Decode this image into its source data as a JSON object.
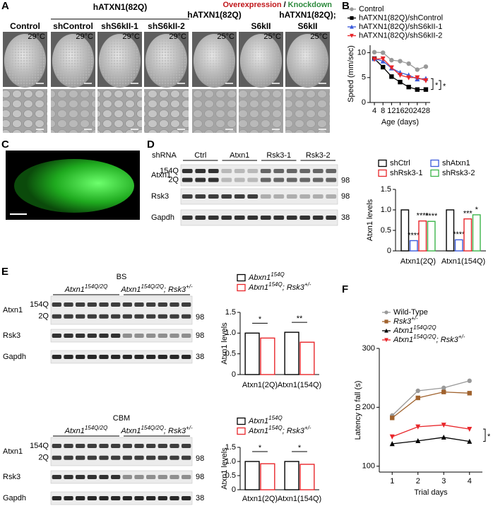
{
  "panel_letters": [
    "A",
    "B",
    "C",
    "D",
    "E",
    "F"
  ],
  "panel_a": {
    "group_label": "hATXN1(82Q)",
    "header": [
      {
        "text": "Overexpression",
        "color": "#c0161a"
      },
      {
        "text": "/",
        "color": "#000000"
      },
      {
        "text": "Knockdown",
        "color": "#2e8b3e"
      }
    ],
    "columns": [
      {
        "label": [
          "Control"
        ],
        "color": "#000000",
        "temp": "29°C"
      },
      {
        "label": [
          "shControl"
        ],
        "color": "#2e8b3e",
        "temp": "29°C"
      },
      {
        "label": [
          "shS6kII-1"
        ],
        "color": "#2e8b3e",
        "temp": "29°C"
      },
      {
        "label": [
          "shS6kII-2"
        ],
        "color": "#2e8b3e",
        "temp": "29°C"
      },
      {
        "label": [
          "hATXN1(82Q)"
        ],
        "color": "#c0161a",
        "temp": "25°C"
      },
      {
        "label": [
          "S6kII"
        ],
        "color": "#c0161a",
        "temp": "25°C"
      },
      {
        "label": [
          "hATXN1(82Q);",
          "S6kII"
        ],
        "color": "#c0161a",
        "temp": "25°C"
      }
    ]
  },
  "blot_d": {
    "title": "shRNA",
    "lane_groups": [
      "Ctrl",
      "Atxn1",
      "Rsk3-1",
      "Rsk3-2"
    ],
    "rows": [
      {
        "label": "Atxn1",
        "bands": [
          "154Q",
          "2Q"
        ],
        "mw": "98"
      },
      {
        "label": "Rsk3",
        "mw": "98"
      },
      {
        "label": "Gapdh",
        "mw": "38"
      }
    ]
  },
  "blot_e_bs": {
    "title": "BS",
    "lane_groups": [
      [
        {
          "text": "Atxn1"
        },
        {
          "text": "154Q/2Q",
          "sup": true
        }
      ],
      [
        {
          "text": "Atxn1"
        },
        {
          "text": "154Q/2Q",
          "sup": true
        },
        {
          "text": "; Rsk3"
        },
        {
          "text": "+/-",
          "sup": true
        }
      ]
    ],
    "rows": [
      {
        "label": "Atxn1",
        "bands": [
          "154Q",
          "2Q"
        ],
        "mw": "98"
      },
      {
        "label": "Rsk3",
        "mw": "98"
      },
      {
        "label": "Gapdh",
        "mw": "38"
      }
    ]
  },
  "blot_e_cbm": {
    "title": "CBM",
    "lane_groups": [
      [
        {
          "text": "Atxn1"
        },
        {
          "text": "154Q/2Q",
          "sup": true
        }
      ],
      [
        {
          "text": "Atxn1"
        },
        {
          "text": "154Q/2Q",
          "sup": true
        },
        {
          "text": "; Rsk3"
        },
        {
          "text": "+/-",
          "sup": true
        }
      ]
    ],
    "rows": [
      {
        "label": "Atxn1",
        "bands": [
          "154Q",
          "2Q"
        ],
        "mw": "98"
      },
      {
        "label": "Rsk3",
        "mw": "98"
      },
      {
        "label": "Gapdh",
        "mw": "38"
      }
    ]
  },
  "chart_data": [
    {
      "type": "line",
      "ylabel": "Speed (mm/sec)",
      "xlabel": "Age (days)",
      "x": [
        4,
        8,
        12,
        16,
        20,
        24,
        28
      ],
      "xlim": [
        2,
        30
      ],
      "xticks": [
        4,
        8,
        12,
        16,
        20,
        24,
        28
      ],
      "ylim": [
        0,
        11.5
      ],
      "yticks": [
        0,
        5,
        10
      ],
      "series": [
        {
          "name": "Control",
          "color": "#999999",
          "marker": "circle",
          "values": [
            10.1,
            10.0,
            8.5,
            8.3,
            7.8,
            6.6,
            7.2
          ]
        },
        {
          "name": "hATXN1(82Q)/shControl",
          "color": "#000000",
          "marker": "square",
          "values": [
            8.8,
            7.1,
            5.2,
            4.1,
            3.1,
            2.6,
            2.6
          ]
        },
        {
          "name": "hATXN1(82Q)/shS6kII-1",
          "color": "#3b5bdb",
          "marker": "triangle",
          "values": [
            8.8,
            8.3,
            6.9,
            6.0,
            5.5,
            4.7,
            4.8
          ]
        },
        {
          "name": "hATXN1(82Q)/shS6kII-2",
          "color": "#e8262a",
          "marker": "triangle-down",
          "values": [
            8.7,
            8.8,
            7.0,
            5.5,
            5.0,
            5.0,
            4.4
          ]
        }
      ],
      "annotations": [
        "*",
        "*"
      ]
    },
    {
      "type": "bar",
      "ylabel": "Atxn1 levels",
      "categories": [
        "Atxn1(2Q)",
        "Atxn1(154Q)"
      ],
      "ylim": [
        0,
        1.5
      ],
      "yticks": [
        0,
        0.5,
        {
          "value": 1,
          "label": "1.0"
        },
        1.5
      ],
      "series": [
        {
          "name": "shCtrl",
          "color": "#000000",
          "values": [
            1.0,
            1.0
          ]
        },
        {
          "name": "shAtxn1",
          "color": "#3b5bdb",
          "values": [
            0.25,
            0.27
          ],
          "annotations": [
            "****",
            "****"
          ]
        },
        {
          "name": "shRsk3-1",
          "color": "#e8262a",
          "values": [
            0.73,
            0.78
          ],
          "annotations": [
            "****",
            "***"
          ]
        },
        {
          "name": "shRsk3-2",
          "color": "#3cb54a",
          "values": [
            0.72,
            0.88
          ],
          "annotations": [
            "****",
            "*"
          ]
        }
      ]
    },
    {
      "type": "bar",
      "ylabel": "Atxn1 levels",
      "categories": [
        "Atxn1(2Q)",
        "Atxn1(154Q)"
      ],
      "ylim": [
        0,
        1.5
      ],
      "yticks": [
        0,
        0.5,
        {
          "value": 1,
          "label": "1.0"
        },
        1.5
      ],
      "series": [
        {
          "name": [
            {
              "text": "Abxn1"
            },
            {
              "text": "154Q",
              "sup": true
            }
          ],
          "color": "#000000",
          "values": [
            1.0,
            1.02
          ]
        },
        {
          "name": [
            {
              "text": "Atxn1"
            },
            {
              "text": "154Q",
              "sup": true
            },
            {
              "text": "; Rsk3"
            },
            {
              "text": "+/-",
              "sup": true
            }
          ],
          "color": "#e8262a",
          "values": [
            0.88,
            0.78
          ]
        }
      ],
      "annotations": [
        "*",
        "**"
      ]
    },
    {
      "type": "bar",
      "ylabel": "Atxn1 levels",
      "categories": [
        "Atxn1(2Q)",
        "Atxn1(154Q)"
      ],
      "ylim": [
        0,
        1.5
      ],
      "yticks": [
        0,
        0.5,
        {
          "value": 1,
          "label": "1.0"
        },
        1.5
      ],
      "series": [
        {
          "name": [
            {
              "text": "Atxn1"
            },
            {
              "text": "154Q",
              "sup": true
            }
          ],
          "color": "#000000",
          "values": [
            1.0,
            1.0
          ]
        },
        {
          "name": [
            {
              "text": "Atxn1"
            },
            {
              "text": "154Q",
              "sup": true
            },
            {
              "text": "; Rsk3"
            },
            {
              "text": "+/-",
              "sup": true
            }
          ],
          "color": "#e8262a",
          "values": [
            0.92,
            0.9
          ]
        }
      ],
      "annotations": [
        "*",
        "*"
      ]
    },
    {
      "type": "line",
      "ylabel": "Latency to fall (s)",
      "xlabel": "Trial days",
      "x": [
        1,
        2,
        3,
        4
      ],
      "xlim": [
        0.5,
        4.5
      ],
      "xticks": [
        1,
        2,
        3,
        4
      ],
      "ylim": [
        90,
        300
      ],
      "yticks": [
        100,
        200,
        300
      ],
      "series": [
        {
          "name": "Wild-Type",
          "color": "#999999",
          "marker": "circle",
          "values": [
            186,
            228,
            233,
            245
          ]
        },
        {
          "name": [
            {
              "text": "Rsk3"
            },
            {
              "text": "+/-",
              "sup": true
            }
          ],
          "color": "#a0622d",
          "marker": "square",
          "values": [
            182,
            216,
            226,
            224
          ]
        },
        {
          "name": [
            {
              "text": "Atxn1"
            },
            {
              "text": "154Q/2Q",
              "sup": true
            }
          ],
          "color": "#000000",
          "marker": "triangle",
          "values": [
            138,
            143,
            149,
            142
          ]
        },
        {
          "name": [
            {
              "text": "Atxn1"
            },
            {
              "text": "154Q/2Q",
              "sup": true
            },
            {
              "text": "; Rsk3"
            },
            {
              "text": "+/-",
              "sup": true
            }
          ],
          "color": "#e8262a",
          "marker": "triangle-down",
          "values": [
            150,
            167,
            170,
            163
          ]
        }
      ],
      "annotations": [
        "*"
      ]
    }
  ]
}
